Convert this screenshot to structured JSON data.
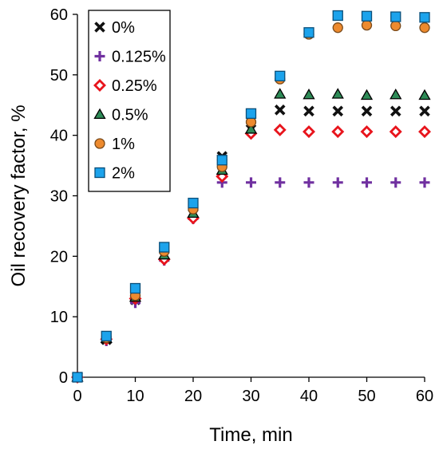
{
  "chart_data": {
    "type": "scatter",
    "title": "",
    "xlabel": "Time, min",
    "ylabel": "Oil recovery factor, %",
    "xlim": [
      0,
      60
    ],
    "ylim": [
      0,
      60
    ],
    "xticks": [
      "0",
      "10",
      "20",
      "30",
      "40",
      "50",
      "60"
    ],
    "yticks": [
      "0",
      "10",
      "20",
      "30",
      "40",
      "50",
      "60"
    ],
    "grid": false,
    "legend_position": "top-left",
    "series": [
      {
        "name": "0%",
        "marker": "x",
        "color": "#111111",
        "x": [
          0,
          5,
          10,
          15,
          20,
          25,
          30,
          35,
          40,
          45,
          50,
          55,
          60
        ],
        "y": [
          0,
          6.2,
          12.8,
          20.0,
          27.0,
          36.5,
          41.0,
          44.2,
          44.0,
          44.0,
          44.0,
          44.0,
          44.0
        ]
      },
      {
        "name": "0.125%",
        "marker": "plus",
        "color": "#7030A0",
        "x": [
          0,
          5,
          10,
          15,
          20,
          25,
          30,
          35,
          40,
          45,
          50,
          55,
          60
        ],
        "y": [
          0,
          6.0,
          12.3,
          19.3,
          26.2,
          32.2,
          32.2,
          32.2,
          32.2,
          32.2,
          32.2,
          32.2,
          32.2
        ]
      },
      {
        "name": "0.25%",
        "marker": "diamond",
        "color": "#E8141C",
        "x": [
          0,
          5,
          10,
          15,
          20,
          25,
          30,
          35,
          40,
          45,
          50,
          55,
          60
        ],
        "y": [
          0,
          6.3,
          13.0,
          19.5,
          26.3,
          33.2,
          40.3,
          40.9,
          40.6,
          40.6,
          40.6,
          40.6,
          40.6
        ]
      },
      {
        "name": "0.5%",
        "marker": "triangle",
        "color": "#2E8B57",
        "x": [
          0,
          5,
          10,
          15,
          20,
          25,
          30,
          35,
          40,
          45,
          50,
          55,
          60
        ],
        "y": [
          0,
          6.4,
          13.2,
          20.2,
          27.1,
          34.2,
          41.0,
          46.8,
          46.7,
          46.8,
          46.6,
          46.7,
          46.6
        ]
      },
      {
        "name": "1%",
        "marker": "circle",
        "color": "#ED8A2E",
        "x": [
          0,
          5,
          10,
          15,
          20,
          25,
          30,
          35,
          40,
          45,
          50,
          55,
          60
        ],
        "y": [
          0,
          6.5,
          13.5,
          20.8,
          27.8,
          34.8,
          42.2,
          49.3,
          56.7,
          57.8,
          58.2,
          58.1,
          57.8
        ]
      },
      {
        "name": "2%",
        "marker": "square",
        "color": "#1CA3EC",
        "x": [
          0,
          5,
          10,
          15,
          20,
          25,
          30,
          35,
          40,
          45,
          50,
          55,
          60
        ],
        "y": [
          0,
          6.8,
          14.7,
          21.5,
          28.8,
          35.9,
          43.6,
          49.8,
          57.0,
          59.8,
          59.7,
          59.6,
          59.5
        ]
      }
    ]
  }
}
